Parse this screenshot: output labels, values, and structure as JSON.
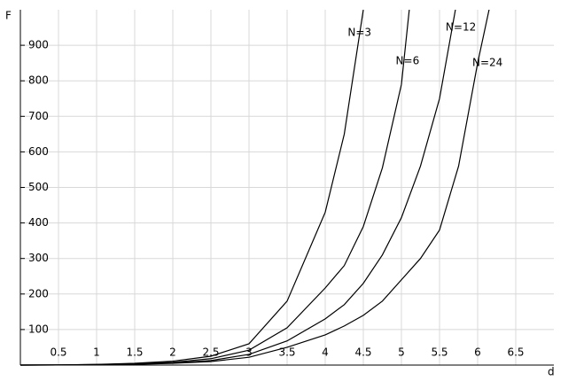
{
  "chart_data": {
    "type": "line",
    "x_label": "d",
    "y_label": "F",
    "x": [
      0,
      0.5,
      1,
      1.5,
      2,
      2.5,
      3,
      3.5,
      4,
      4.25,
      4.5,
      4.75,
      5,
      5.25,
      5.5,
      5.75,
      6,
      6.25
    ],
    "series": [
      {
        "name": "N=3",
        "color": "#e6c21e",
        "values": [
          0,
          0.5,
          2,
          5,
          11,
          25,
          60,
          180,
          430,
          650,
          1000,
          null,
          null,
          null,
          null,
          null,
          null,
          null
        ]
      },
      {
        "name": "N=6",
        "color": "#b5d22e",
        "values": [
          0,
          0.3,
          1.5,
          4,
          8,
          18,
          42,
          105,
          217,
          280,
          390,
          555,
          790,
          1300,
          null,
          null,
          null,
          null
        ]
      },
      {
        "name": "N=12",
        "color": "#d4202c",
        "values": [
          0,
          0.2,
          1,
          3,
          6,
          13,
          30,
          68,
          130,
          170,
          230,
          310,
          415,
          560,
          750,
          1050,
          null,
          null
        ]
      },
      {
        "name": "N=24",
        "color": "#1fa2d6",
        "values": [
          0,
          0.1,
          0.8,
          2,
          5,
          10,
          22,
          50,
          85,
          110,
          140,
          180,
          240,
          300,
          380,
          560,
          850,
          1100
        ]
      }
    ],
    "line_color": "#000000",
    "xlim": [
      0,
      7
    ],
    "ylim": [
      0,
      1000
    ],
    "xticks": [
      0.5,
      1,
      1.5,
      2,
      2.5,
      3,
      3.5,
      4,
      4.5,
      5,
      5.5,
      6,
      6.5
    ],
    "yticks": [
      100,
      200,
      300,
      400,
      500,
      600,
      700,
      800,
      900
    ],
    "grid": true
  }
}
